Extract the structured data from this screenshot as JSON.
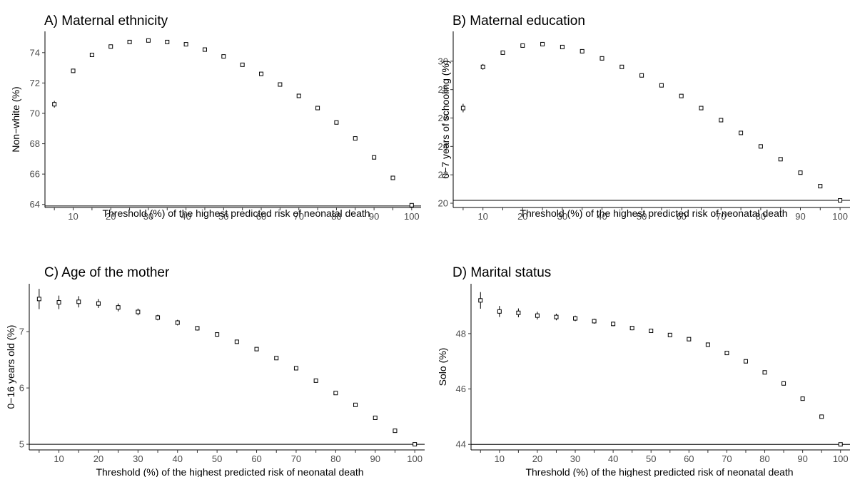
{
  "chart_data": [
    {
      "type": "scatter",
      "title": "A) Maternal ethnicity",
      "xlabel": "Threshold (%) of the highest predicted risk of neonatal death",
      "ylabel": "Non−white (%)",
      "xlim": [
        2.5,
        102.5
      ],
      "ylim": [
        63.8,
        75.4
      ],
      "xticks": [
        10,
        20,
        30,
        40,
        50,
        60,
        70,
        80,
        90,
        100
      ],
      "yticks": [
        64,
        66,
        68,
        70,
        72,
        74
      ],
      "reference_line": 63.9,
      "grid": false,
      "x": [
        5,
        10,
        15,
        20,
        25,
        30,
        35,
        40,
        45,
        50,
        55,
        60,
        65,
        70,
        75,
        80,
        85,
        90,
        95,
        100
      ],
      "y": [
        70.6,
        72.8,
        73.85,
        74.4,
        74.7,
        74.8,
        74.7,
        74.55,
        74.2,
        73.75,
        73.2,
        72.6,
        71.9,
        71.15,
        70.35,
        69.4,
        68.35,
        67.1,
        65.75,
        63.95
      ],
      "err": [
        0.22,
        0.13,
        0.1,
        0.09,
        0.08,
        0.07,
        0.07,
        0.06,
        0.06,
        0.06,
        0.06,
        0.05,
        0.05,
        0.05,
        0.05,
        0.05,
        0.05,
        0.05,
        0.05,
        0.04
      ]
    },
    {
      "type": "scatter",
      "title": "B) Maternal education",
      "xlabel": "Threshold (%) of the highest predicted risk of neonatal death",
      "ylabel": "0−7 years of schooling (%)",
      "xlim": [
        2.5,
        102.5
      ],
      "ylim": [
        19.7,
        32.1
      ],
      "xticks": [
        10,
        20,
        30,
        40,
        50,
        60,
        70,
        80,
        90,
        100
      ],
      "yticks": [
        20,
        22,
        24,
        26,
        28,
        30
      ],
      "reference_line": 20.2,
      "grid": false,
      "x": [
        5,
        10,
        15,
        20,
        25,
        30,
        35,
        40,
        45,
        50,
        55,
        60,
        65,
        70,
        75,
        80,
        85,
        90,
        95,
        100
      ],
      "y": [
        26.7,
        29.6,
        30.6,
        31.1,
        31.2,
        31.0,
        30.7,
        30.2,
        29.6,
        29.0,
        28.3,
        27.55,
        26.7,
        25.85,
        24.95,
        24.0,
        23.1,
        22.15,
        21.2,
        20.2
      ],
      "err": [
        0.3,
        0.2,
        0.15,
        0.12,
        0.1,
        0.09,
        0.08,
        0.08,
        0.07,
        0.07,
        0.06,
        0.06,
        0.06,
        0.06,
        0.05,
        0.05,
        0.05,
        0.05,
        0.05,
        0.04
      ]
    },
    {
      "type": "scatter",
      "title": "C) Age of the mother",
      "xlabel": "Threshold (%) of the highest predicted risk of neonatal death",
      "ylabel": "0−16 years old (%)",
      "xlim": [
        2.5,
        102.5
      ],
      "ylim": [
        4.9,
        7.85
      ],
      "xticks": [
        10,
        20,
        30,
        40,
        50,
        60,
        70,
        80,
        90,
        100
      ],
      "yticks": [
        5,
        6,
        7
      ],
      "reference_line": 5.0,
      "grid": false,
      "x": [
        5,
        10,
        15,
        20,
        25,
        30,
        35,
        40,
        45,
        50,
        55,
        60,
        65,
        70,
        75,
        80,
        85,
        90,
        95,
        100
      ],
      "y": [
        7.58,
        7.52,
        7.53,
        7.5,
        7.43,
        7.35,
        7.25,
        7.16,
        7.06,
        6.95,
        6.82,
        6.69,
        6.53,
        6.35,
        6.13,
        5.91,
        5.7,
        5.47,
        5.24,
        5.0
      ],
      "err": [
        0.18,
        0.12,
        0.1,
        0.08,
        0.07,
        0.06,
        0.05,
        0.05,
        0.04,
        0.04,
        0.03,
        0.03,
        0.03,
        0.03,
        0.02,
        0.02,
        0.02,
        0.02,
        0.02,
        0.02
      ]
    },
    {
      "type": "scatter",
      "title": "D) Marital status",
      "xlabel": "Threshold (%) of the highest predicted risk of neonatal death",
      "ylabel": "Solo (%)",
      "xlim": [
        2.5,
        102.5
      ],
      "ylim": [
        43.8,
        49.8
      ],
      "xticks": [
        10,
        20,
        30,
        40,
        50,
        60,
        70,
        80,
        90,
        100
      ],
      "yticks": [
        44,
        46,
        48
      ],
      "reference_line": 44.0,
      "grid": false,
      "x": [
        5,
        10,
        15,
        20,
        25,
        30,
        35,
        40,
        45,
        50,
        55,
        60,
        65,
        70,
        75,
        80,
        85,
        90,
        95,
        100
      ],
      "y": [
        49.2,
        48.8,
        48.75,
        48.65,
        48.6,
        48.55,
        48.45,
        48.35,
        48.2,
        48.1,
        47.95,
        47.8,
        47.6,
        47.3,
        47.0,
        46.6,
        46.2,
        45.65,
        45.0,
        44.0
      ],
      "err": [
        0.3,
        0.2,
        0.16,
        0.14,
        0.12,
        0.1,
        0.09,
        0.08,
        0.08,
        0.07,
        0.07,
        0.06,
        0.06,
        0.06,
        0.05,
        0.05,
        0.05,
        0.05,
        0.05,
        0.04
      ]
    }
  ]
}
